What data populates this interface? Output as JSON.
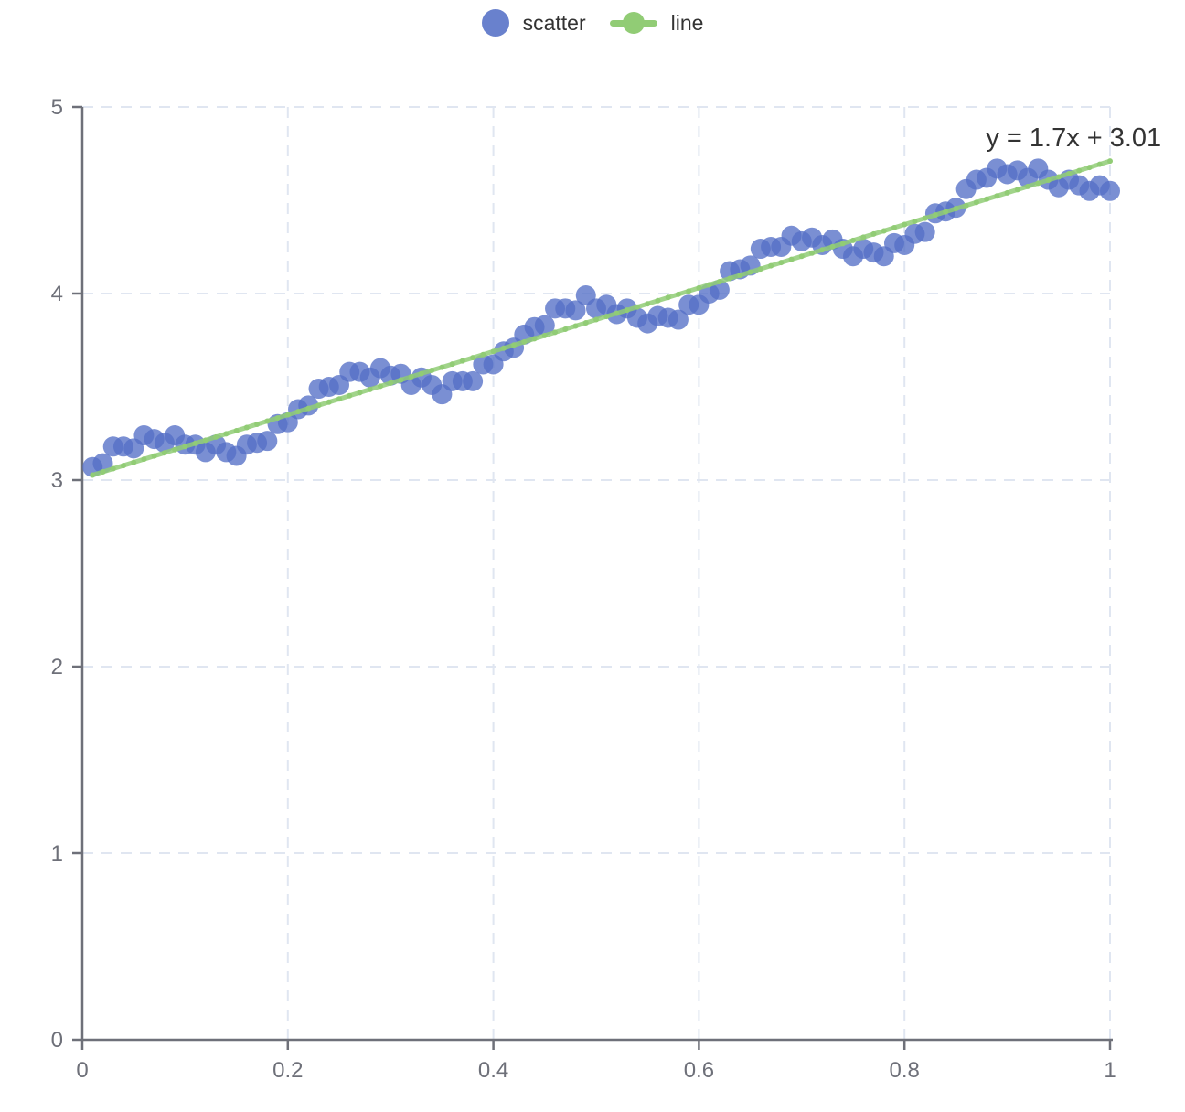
{
  "legend": {
    "items": [
      {
        "label": "scatter",
        "marker": "circle",
        "color": "#5470C6"
      },
      {
        "label": "line",
        "marker": "line",
        "color": "#91CC75"
      }
    ]
  },
  "chart_data": {
    "type": "scatter",
    "title": "",
    "xlabel": "",
    "ylabel": "",
    "xlim": [
      0,
      1
    ],
    "ylim": [
      0,
      5
    ],
    "grid": "dashed",
    "legend_position": "top-center",
    "x_ticks": {
      "values": [
        0,
        0.2,
        0.4,
        0.6,
        0.8,
        1
      ],
      "labels": [
        "0",
        "0.2",
        "0.4",
        "0.6",
        "0.8",
        "1"
      ]
    },
    "y_ticks": {
      "values": [
        0,
        1,
        2,
        3,
        4,
        5
      ],
      "labels": [
        "0",
        "1",
        "2",
        "3",
        "4",
        "5"
      ]
    },
    "colors": {
      "axis": "#6E7079",
      "grid": "#E0E6F1",
      "tick_label": "#6E7079"
    },
    "annotation": {
      "text": "y = 1.7x + 3.01",
      "x": 1.05,
      "y": 4.79,
      "align": "right",
      "color": "#333333",
      "font_size": 29
    },
    "series": [
      {
        "name": "scatter",
        "type": "scatter",
        "color": "#5470C6",
        "point_radius": 11,
        "opacity": 0.78,
        "points": [
          [
            0.01,
            3.07
          ],
          [
            0.02,
            3.09
          ],
          [
            0.03,
            3.18
          ],
          [
            0.04,
            3.18
          ],
          [
            0.05,
            3.17
          ],
          [
            0.06,
            3.24
          ],
          [
            0.07,
            3.22
          ],
          [
            0.08,
            3.2
          ],
          [
            0.09,
            3.24
          ],
          [
            0.1,
            3.19
          ],
          [
            0.11,
            3.19
          ],
          [
            0.12,
            3.15
          ],
          [
            0.13,
            3.19
          ],
          [
            0.14,
            3.15
          ],
          [
            0.15,
            3.13
          ],
          [
            0.16,
            3.19
          ],
          [
            0.17,
            3.2
          ],
          [
            0.18,
            3.21
          ],
          [
            0.19,
            3.3
          ],
          [
            0.2,
            3.31
          ],
          [
            0.21,
            3.38
          ],
          [
            0.22,
            3.4
          ],
          [
            0.23,
            3.49
          ],
          [
            0.24,
            3.5
          ],
          [
            0.25,
            3.51
          ],
          [
            0.26,
            3.58
          ],
          [
            0.27,
            3.58
          ],
          [
            0.28,
            3.55
          ],
          [
            0.29,
            3.6
          ],
          [
            0.3,
            3.56
          ],
          [
            0.31,
            3.57
          ],
          [
            0.32,
            3.51
          ],
          [
            0.33,
            3.55
          ],
          [
            0.34,
            3.51
          ],
          [
            0.35,
            3.46
          ],
          [
            0.36,
            3.53
          ],
          [
            0.37,
            3.53
          ],
          [
            0.38,
            3.53
          ],
          [
            0.39,
            3.62
          ],
          [
            0.4,
            3.62
          ],
          [
            0.41,
            3.69
          ],
          [
            0.42,
            3.71
          ],
          [
            0.43,
            3.78
          ],
          [
            0.44,
            3.82
          ],
          [
            0.45,
            3.83
          ],
          [
            0.46,
            3.92
          ],
          [
            0.47,
            3.92
          ],
          [
            0.48,
            3.91
          ],
          [
            0.49,
            3.99
          ],
          [
            0.5,
            3.92
          ],
          [
            0.51,
            3.94
          ],
          [
            0.52,
            3.89
          ],
          [
            0.53,
            3.92
          ],
          [
            0.54,
            3.87
          ],
          [
            0.55,
            3.84
          ],
          [
            0.56,
            3.88
          ],
          [
            0.57,
            3.87
          ],
          [
            0.58,
            3.86
          ],
          [
            0.59,
            3.94
          ],
          [
            0.6,
            3.94
          ],
          [
            0.61,
            4.0
          ],
          [
            0.62,
            4.02
          ],
          [
            0.63,
            4.12
          ],
          [
            0.64,
            4.13
          ],
          [
            0.65,
            4.15
          ],
          [
            0.66,
            4.24
          ],
          [
            0.67,
            4.25
          ],
          [
            0.68,
            4.25
          ],
          [
            0.69,
            4.31
          ],
          [
            0.7,
            4.28
          ],
          [
            0.71,
            4.3
          ],
          [
            0.72,
            4.26
          ],
          [
            0.73,
            4.29
          ],
          [
            0.74,
            4.24
          ],
          [
            0.75,
            4.2
          ],
          [
            0.76,
            4.24
          ],
          [
            0.77,
            4.22
          ],
          [
            0.78,
            4.2
          ],
          [
            0.79,
            4.27
          ],
          [
            0.8,
            4.26
          ],
          [
            0.81,
            4.32
          ],
          [
            0.82,
            4.33
          ],
          [
            0.83,
            4.43
          ],
          [
            0.84,
            4.44
          ],
          [
            0.85,
            4.46
          ],
          [
            0.86,
            4.56
          ],
          [
            0.87,
            4.61
          ],
          [
            0.88,
            4.62
          ],
          [
            0.89,
            4.67
          ],
          [
            0.9,
            4.64
          ],
          [
            0.91,
            4.66
          ],
          [
            0.92,
            4.62
          ],
          [
            0.93,
            4.67
          ],
          [
            0.94,
            4.61
          ],
          [
            0.95,
            4.57
          ],
          [
            0.96,
            4.61
          ],
          [
            0.97,
            4.58
          ],
          [
            0.98,
            4.55
          ],
          [
            0.99,
            4.58
          ],
          [
            1.0,
            4.55
          ]
        ]
      },
      {
        "name": "line",
        "type": "line",
        "color": "#91CC75",
        "slope": 1.7,
        "intercept": 3.01,
        "x_range": [
          0.01,
          1.0
        ],
        "width": 5,
        "opacity": 0.85,
        "symbol_radius": 3
      }
    ]
  }
}
